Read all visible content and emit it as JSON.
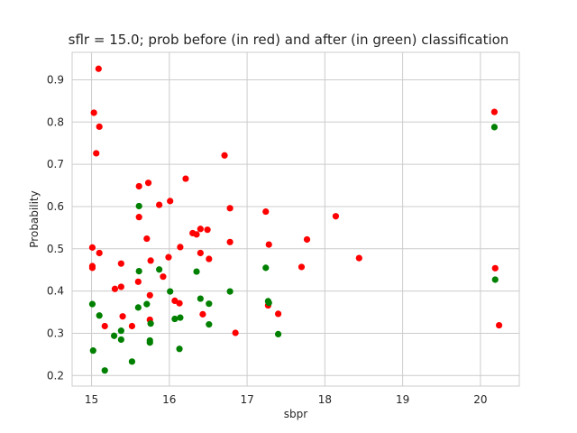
{
  "chart_data": {
    "type": "scatter",
    "title": "sflr = 15.0; prob before (in red) and after (in green) classification",
    "xlabel": "sbpr",
    "ylabel": "Probability",
    "xlim": [
      14.75,
      20.5
    ],
    "ylim": [
      0.175,
      0.965
    ],
    "xticks": [
      15,
      16,
      17,
      18,
      19,
      20
    ],
    "yticks": [
      0.2,
      0.3,
      0.4,
      0.5,
      0.6,
      0.7,
      0.8,
      0.9
    ],
    "grid": true,
    "legend": "none",
    "series": [
      {
        "color": "#ff0000",
        "points": [
          [
            15.01,
            0.503
          ],
          [
            15.01,
            0.459
          ],
          [
            15.01,
            0.455
          ],
          [
            15.03,
            0.822
          ],
          [
            15.06,
            0.726
          ],
          [
            15.09,
            0.926
          ],
          [
            15.1,
            0.789
          ],
          [
            15.1,
            0.49
          ],
          [
            15.17,
            0.317
          ],
          [
            15.3,
            0.405
          ],
          [
            15.38,
            0.41
          ],
          [
            15.38,
            0.465
          ],
          [
            15.4,
            0.34
          ],
          [
            15.52,
            0.317
          ],
          [
            15.6,
            0.422
          ],
          [
            15.61,
            0.648
          ],
          [
            15.61,
            0.575
          ],
          [
            15.71,
            0.524
          ],
          [
            15.73,
            0.656
          ],
          [
            15.75,
            0.39
          ],
          [
            15.75,
            0.332
          ],
          [
            15.76,
            0.472
          ],
          [
            15.87,
            0.604
          ],
          [
            15.92,
            0.434
          ],
          [
            15.99,
            0.48
          ],
          [
            16.01,
            0.613
          ],
          [
            16.07,
            0.377
          ],
          [
            16.13,
            0.371
          ],
          [
            16.14,
            0.504
          ],
          [
            16.21,
            0.666
          ],
          [
            16.3,
            0.537
          ],
          [
            16.35,
            0.534
          ],
          [
            16.4,
            0.547
          ],
          [
            16.4,
            0.49
          ],
          [
            16.43,
            0.345
          ],
          [
            16.49,
            0.545
          ],
          [
            16.51,
            0.476
          ],
          [
            16.71,
            0.721
          ],
          [
            16.78,
            0.596
          ],
          [
            16.78,
            0.516
          ],
          [
            16.85,
            0.301
          ],
          [
            17.24,
            0.588
          ],
          [
            17.27,
            0.366
          ],
          [
            17.28,
            0.51
          ],
          [
            17.4,
            0.346
          ],
          [
            17.7,
            0.457
          ],
          [
            17.77,
            0.522
          ],
          [
            18.14,
            0.577
          ],
          [
            18.44,
            0.478
          ],
          [
            20.18,
            0.824
          ],
          [
            20.19,
            0.454
          ],
          [
            20.24,
            0.319
          ]
        ]
      },
      {
        "color": "#008000",
        "points": [
          [
            15.01,
            0.369
          ],
          [
            15.02,
            0.259
          ],
          [
            15.1,
            0.342
          ],
          [
            15.17,
            0.212
          ],
          [
            15.29,
            0.294
          ],
          [
            15.38,
            0.306
          ],
          [
            15.38,
            0.285
          ],
          [
            15.52,
            0.233
          ],
          [
            15.6,
            0.361
          ],
          [
            15.61,
            0.601
          ],
          [
            15.61,
            0.447
          ],
          [
            15.71,
            0.369
          ],
          [
            15.76,
            0.323
          ],
          [
            15.75,
            0.283
          ],
          [
            15.75,
            0.278
          ],
          [
            15.87,
            0.451
          ],
          [
            16.01,
            0.399
          ],
          [
            16.07,
            0.334
          ],
          [
            16.13,
            0.263
          ],
          [
            16.14,
            0.337
          ],
          [
            16.35,
            0.446
          ],
          [
            16.4,
            0.382
          ],
          [
            16.51,
            0.37
          ],
          [
            16.51,
            0.321
          ],
          [
            16.78,
            0.399
          ],
          [
            17.24,
            0.455
          ],
          [
            17.27,
            0.376
          ],
          [
            17.28,
            0.372
          ],
          [
            17.4,
            0.298
          ],
          [
            20.18,
            0.788
          ],
          [
            20.19,
            0.427
          ]
        ]
      }
    ]
  }
}
